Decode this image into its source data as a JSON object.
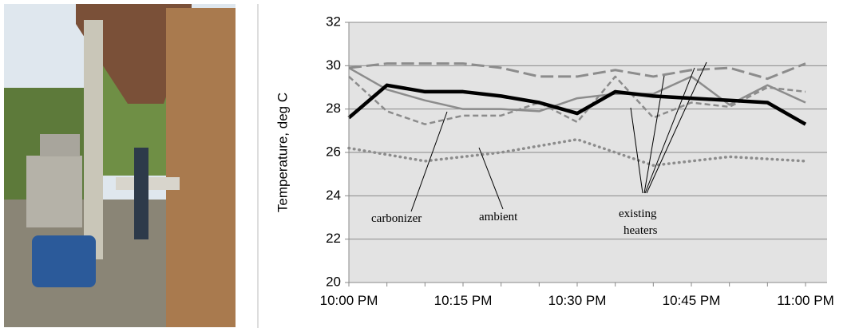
{
  "chart_data": {
    "type": "line",
    "y_label": "Temperature, deg C",
    "categories": [
      "10:00 PM",
      null,
      null,
      "10:15 PM",
      null,
      null,
      "10:30 PM",
      null,
      null,
      "10:45 PM",
      null,
      null,
      "11:00 PM"
    ],
    "ylim": [
      20,
      32
    ],
    "yticks": [
      20,
      22,
      24,
      26,
      28,
      30,
      32
    ],
    "grid": true,
    "series": [
      {
        "color": "#8c8c8c",
        "style": "dotted",
        "values": [
          26.2,
          25.9,
          25.6,
          25.8,
          26.0,
          26.3,
          26.6,
          26.0,
          25.4,
          25.6,
          25.8,
          25.7,
          25.6
        ]
      },
      {
        "color": "#8c8c8c",
        "style": "long-dash",
        "values": [
          29.9,
          30.1,
          30.1,
          30.1,
          29.9,
          29.5,
          29.5,
          29.8,
          29.5,
          29.8,
          29.9,
          29.4,
          30.1
        ]
      },
      {
        "color": "#8c8c8c",
        "style": "solid",
        "values": [
          29.9,
          28.9,
          28.4,
          28.0,
          28.0,
          27.9,
          28.5,
          28.7,
          28.7,
          29.5,
          28.2,
          29.1,
          28.3
        ]
      },
      {
        "color": "#8c8c8c",
        "style": "short-dash",
        "values": [
          29.5,
          27.9,
          27.3,
          27.7,
          27.7,
          28.3,
          27.4,
          29.5,
          27.6,
          28.3,
          28.1,
          29.0,
          28.8
        ]
      },
      {
        "color": "#000000",
        "style": "bold",
        "values": [
          27.6,
          29.1,
          28.8,
          28.8,
          28.6,
          28.3,
          27.8,
          28.8,
          28.6,
          28.5,
          28.4,
          28.3,
          27.3
        ]
      }
    ],
    "annotations": {
      "carbonizer": "carbonizer",
      "ambient": "ambient",
      "heaters": [
        "existing",
        "heaters"
      ]
    }
  }
}
